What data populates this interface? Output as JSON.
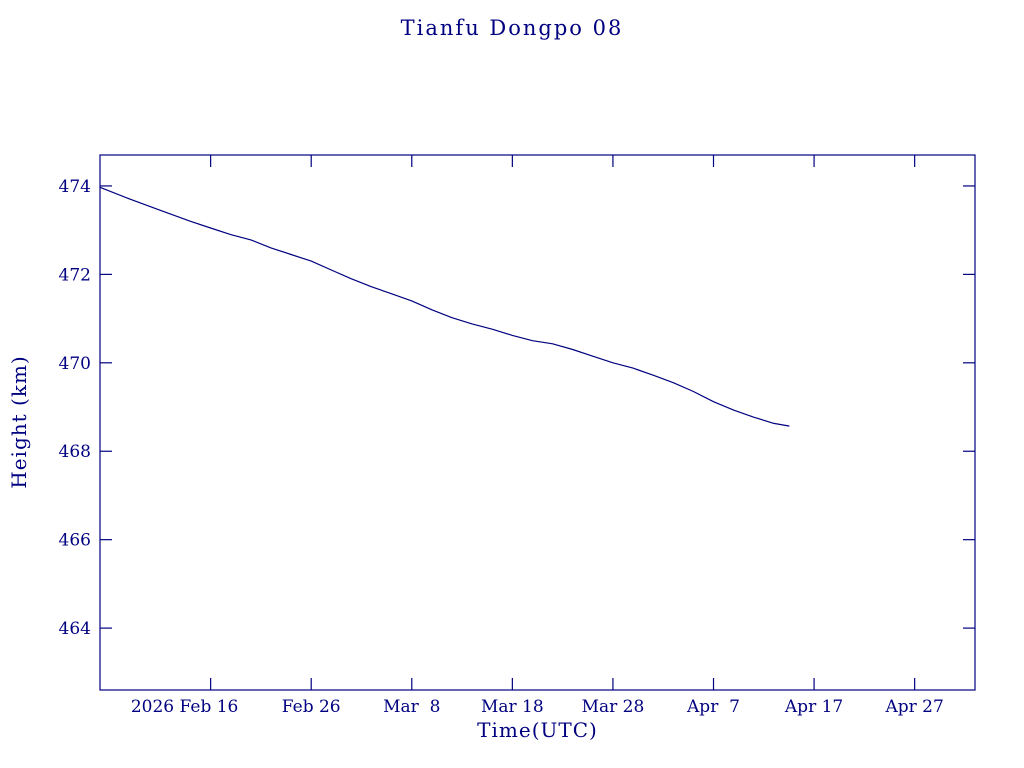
{
  "page": {
    "background": "#ffffff",
    "accent_color": "#000080"
  },
  "chart_data": {
    "type": "line",
    "title": "Tianfu Dongpo 08",
    "xlabel": "Time(UTC)",
    "ylabel": "Height (km)",
    "color": "#000080",
    "line_color": "#000080",
    "grid": false,
    "legend": null,
    "x_unit": "days since 2026 Feb 5 (UTC)",
    "xlim": [
      0,
      87
    ],
    "ylim": [
      462.6,
      474.7
    ],
    "x_ticks": [
      {
        "value": 11,
        "label": "2026 Feb 16",
        "dx": -26
      },
      {
        "value": 21,
        "label": "Feb 26",
        "dx": 0
      },
      {
        "value": 31,
        "label": "Mar  8",
        "dx": 0
      },
      {
        "value": 41,
        "label": "Mar 18",
        "dx": 0
      },
      {
        "value": 51,
        "label": "Mar 28",
        "dx": 0
      },
      {
        "value": 61,
        "label": "Apr  7",
        "dx": 0
      },
      {
        "value": 71,
        "label": "Apr 17",
        "dx": 0
      },
      {
        "value": 81,
        "label": "Apr 27",
        "dx": 0
      }
    ],
    "y_ticks": [
      {
        "value": 464,
        "label": "464"
      },
      {
        "value": 466,
        "label": "466"
      },
      {
        "value": 468,
        "label": "468"
      },
      {
        "value": 470,
        "label": "470"
      },
      {
        "value": 472,
        "label": "472"
      },
      {
        "value": 474,
        "label": "474"
      }
    ],
    "series": [
      {
        "name": "height",
        "x": [
          0,
          3,
          6,
          9,
          11,
          13,
          15,
          17,
          19,
          21,
          23,
          25,
          27,
          29,
          31,
          33,
          35,
          37,
          39,
          41,
          43,
          45,
          47,
          49,
          51,
          53,
          55,
          57,
          59,
          61,
          63,
          65,
          67,
          68.5
        ],
        "y": [
          473.97,
          473.7,
          473.45,
          473.2,
          473.05,
          472.9,
          472.78,
          472.6,
          472.45,
          472.3,
          472.1,
          471.9,
          471.72,
          471.56,
          471.4,
          471.2,
          471.02,
          470.88,
          470.76,
          470.62,
          470.5,
          470.43,
          470.3,
          470.15,
          470.0,
          469.88,
          469.72,
          469.55,
          469.35,
          469.12,
          468.93,
          468.77,
          468.63,
          468.57
        ]
      }
    ]
  }
}
